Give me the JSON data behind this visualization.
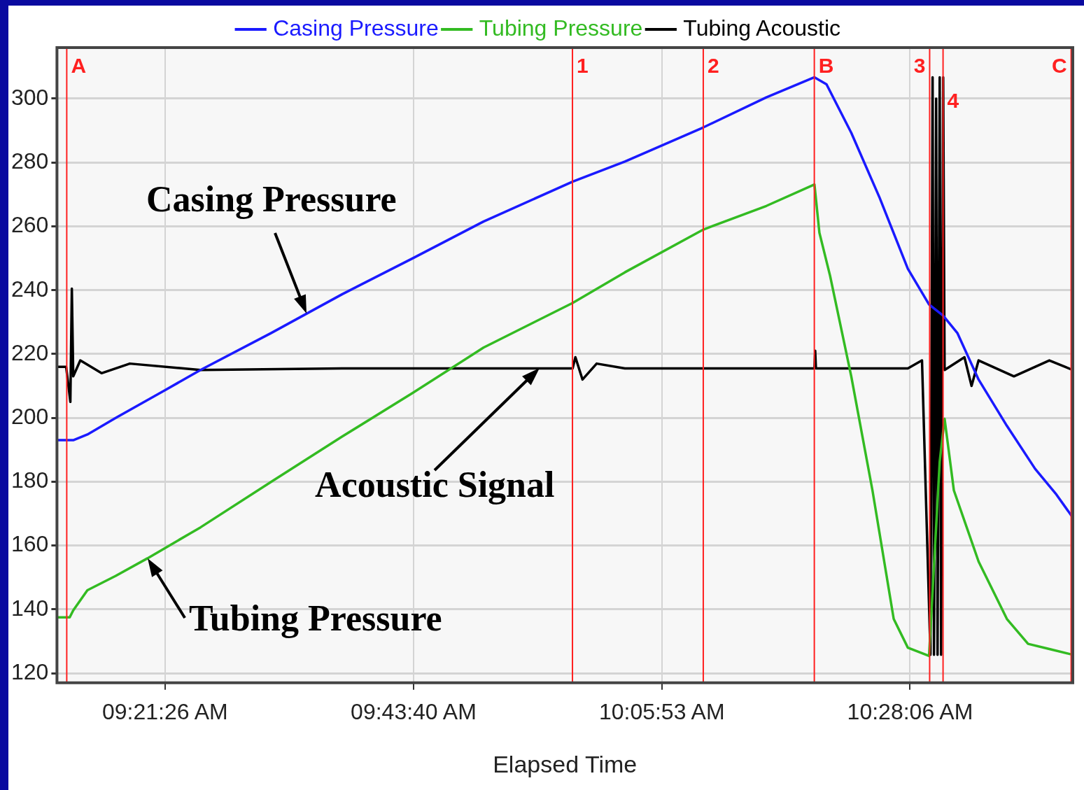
{
  "chart_data": {
    "type": "line",
    "xlabel": "Elapsed Time",
    "legend": "top",
    "grid": true,
    "marker": "none",
    "line_style": "solid",
    "xlim": [
      9.196,
      10.711
    ],
    "ylim": [
      117,
      316
    ],
    "xticks": [
      {
        "value": 9.3572,
        "label": "09:21:26 AM"
      },
      {
        "value": 9.7278,
        "label": "09:43:40 AM"
      },
      {
        "value": 10.0981,
        "label": "10:05:53 AM"
      },
      {
        "value": 10.4683,
        "label": "10:28:06 AM"
      }
    ],
    "yticks": [
      120,
      140,
      160,
      180,
      200,
      220,
      240,
      260,
      280,
      300
    ],
    "series": [
      {
        "name": "Casing Pressure",
        "color": "#1a1aff",
        "x": [
          9.196,
          9.2203,
          9.2414,
          9.2836,
          9.3574,
          9.4101,
          9.5156,
          9.6211,
          9.7266,
          9.8321,
          9.965,
          10.043,
          10.1601,
          10.254,
          10.3257,
          10.3437,
          10.3806,
          10.4228,
          10.465,
          10.4966,
          10.5177,
          10.5388,
          10.5705,
          10.6127,
          10.6549,
          10.6865,
          10.7108
        ],
        "values": [
          193,
          193,
          194.8,
          200,
          208.7,
          215,
          226.6,
          238.7,
          250,
          261.5,
          274,
          280.3,
          291,
          300.4,
          306.7,
          304.5,
          289.3,
          269,
          246.7,
          235.5,
          232,
          226.6,
          212,
          197.5,
          184,
          176,
          168.8
        ]
      },
      {
        "name": "Tubing Pressure",
        "color": "#33bb22",
        "x": [
          9.196,
          9.215,
          9.2203,
          9.2414,
          9.2836,
          9.331,
          9.4101,
          9.5156,
          9.6211,
          9.7266,
          9.8321,
          9.965,
          10.043,
          10.1601,
          10.254,
          10.3257,
          10.3331,
          10.349,
          10.3806,
          10.4122,
          10.4439,
          10.465,
          10.4966,
          10.5125,
          10.5198,
          10.5336,
          10.5705,
          10.6127,
          10.6443,
          10.676,
          10.7108
        ],
        "values": [
          137.5,
          137.5,
          139.7,
          146,
          150.5,
          156,
          165.7,
          180,
          194.1,
          207.8,
          222,
          236,
          245.6,
          259,
          266.4,
          273.1,
          258,
          244.5,
          213,
          177.3,
          137,
          128,
          125.4,
          186.3,
          199.7,
          177.3,
          155,
          137,
          129.2,
          127.6,
          125.8
        ]
      },
      {
        "name": "Tubing Acoustic",
        "color": "#000000",
        "x": [
          9.196,
          9.2097,
          9.216,
          9.2182,
          9.2203,
          9.2308,
          9.2625,
          9.3047,
          9.4101,
          9.6211,
          9.8321,
          9.965,
          9.9692,
          9.9798,
          10.0009,
          10.043,
          10.254,
          10.3257,
          10.3268,
          10.3279,
          10.465,
          10.4861,
          10.4987,
          10.5019,
          10.504,
          10.5072,
          10.5093,
          10.5125,
          10.5146,
          10.5177,
          10.5198,
          10.5494,
          10.56,
          10.5705,
          10.6232,
          10.676,
          10.7108
        ],
        "values": [
          216,
          216,
          205,
          240.5,
          213,
          218,
          214,
          217,
          215,
          215.5,
          215.5,
          215.5,
          219,
          212,
          217,
          215.5,
          215.5,
          215.5,
          221,
          215.5,
          215.5,
          218,
          125.8,
          306.7,
          125.8,
          300,
          125.8,
          306.7,
          125.8,
          306.7,
          215,
          219,
          210,
          218,
          213,
          218,
          215
        ]
      }
    ],
    "ref_lines": [
      {
        "axis": "x",
        "value": 9.2106,
        "color": "#ff2020"
      },
      {
        "axis": "x",
        "value": 9.9648,
        "color": "#ff2020"
      },
      {
        "axis": "x",
        "value": 10.1599,
        "color": "#ff2020"
      },
      {
        "axis": "x",
        "value": 10.3255,
        "color": "#ff2020"
      },
      {
        "axis": "x",
        "value": 10.4975,
        "color": "#ff2020"
      },
      {
        "axis": "x",
        "value": 10.5175,
        "color": "#ff2020"
      },
      {
        "axis": "x",
        "value": 10.7085,
        "color": "#ff2020"
      }
    ],
    "annotations": [
      {
        "text": "Casing Pressure",
        "x": 9.568,
        "y": 232.6
      },
      {
        "text": "Acoustic Signal",
        "x": 9.916,
        "y": 215.5
      },
      {
        "text": "Tubing Pressure",
        "x": 9.331,
        "y": 156
      },
      {
        "text": "A",
        "x": 9.2106,
        "y": 310
      },
      {
        "text": "1",
        "x": 9.9648,
        "y": 310
      },
      {
        "text": "2",
        "x": 10.1599,
        "y": 310
      },
      {
        "text": "B",
        "x": 10.3255,
        "y": 310
      },
      {
        "text": "3",
        "x": 10.4975,
        "y": 310
      },
      {
        "text": "4",
        "x": 10.5175,
        "y": 299
      },
      {
        "text": "C",
        "x": 10.7085,
        "y": 310
      }
    ]
  }
}
